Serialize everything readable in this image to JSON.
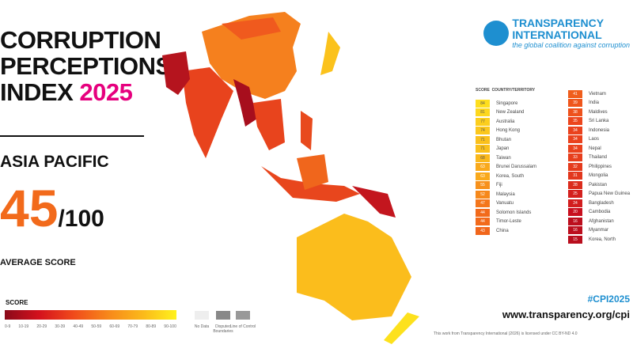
{
  "title": {
    "line1": "CORRUPTION",
    "line2": "PERCEPTIONS",
    "line3": "INDEX",
    "year": "2025"
  },
  "region": "ASIA PACIFIC",
  "average": {
    "score": "45",
    "denominator": "/100",
    "label": "AVERAGE SCORE"
  },
  "legend": {
    "title": "SCORE",
    "ticks": [
      "0-9",
      "10-19",
      "20-29",
      "30-39",
      "40-49",
      "50-59",
      "60-69",
      "70-79",
      "80-89",
      "90-100"
    ],
    "no_data": "No Data",
    "disputed": "Disputed Boundaries",
    "loc": "Line of Control",
    "gradient_low": "#8a0a1a",
    "gradient_high": "#fff21c"
  },
  "logo": {
    "line1": "TRANSPARENCY",
    "line2": "INTERNATIONAL",
    "tagline": "the global coalition against corruption"
  },
  "table": {
    "score_header": "SCORE",
    "country_header": "COUNTRY/TERRITORY",
    "left": [
      {
        "s": "84",
        "c": "Singapore"
      },
      {
        "s": "81",
        "c": "New Zealand"
      },
      {
        "s": "77",
        "c": "Australia"
      },
      {
        "s": "74",
        "c": "Hong Kong"
      },
      {
        "s": "71",
        "c": "Bhutan"
      },
      {
        "s": "71",
        "c": "Japan"
      },
      {
        "s": "68",
        "c": "Taiwan"
      },
      {
        "s": "63",
        "c": "Brunei Darussalam"
      },
      {
        "s": "63",
        "c": "Korea, South"
      },
      {
        "s": "55",
        "c": "Fiji"
      },
      {
        "s": "52",
        "c": "Malaysia"
      },
      {
        "s": "47",
        "c": "Vanuatu"
      },
      {
        "s": "44",
        "c": "Solomon Islands"
      },
      {
        "s": "44",
        "c": "Timor-Leste"
      },
      {
        "s": "43",
        "c": "China"
      }
    ],
    "right": [
      {
        "s": "41",
        "c": "Vietnam"
      },
      {
        "s": "39",
        "c": "India"
      },
      {
        "s": "38",
        "c": "Maldives"
      },
      {
        "s": "35",
        "c": "Sri Lanka"
      },
      {
        "s": "34",
        "c": "Indonesia"
      },
      {
        "s": "34",
        "c": "Laos"
      },
      {
        "s": "34",
        "c": "Nepal"
      },
      {
        "s": "33",
        "c": "Thailand"
      },
      {
        "s": "32",
        "c": "Philippines"
      },
      {
        "s": "31",
        "c": "Mongolia"
      },
      {
        "s": "28",
        "c": "Pakistan"
      },
      {
        "s": "25",
        "c": "Papua New Guinea"
      },
      {
        "s": "24",
        "c": "Bangladesh"
      },
      {
        "s": "20",
        "c": "Cambodia"
      },
      {
        "s": "16",
        "c": "Afghanistan"
      },
      {
        "s": "16",
        "c": "Myanmar"
      },
      {
        "s": "15",
        "c": "Korea, North"
      }
    ]
  },
  "hashtag": "#CPI2025",
  "url": "www.transparency.org/cpi",
  "license": "This work from Transparency International (2026) is licensed under CC BY-ND 4.0"
}
